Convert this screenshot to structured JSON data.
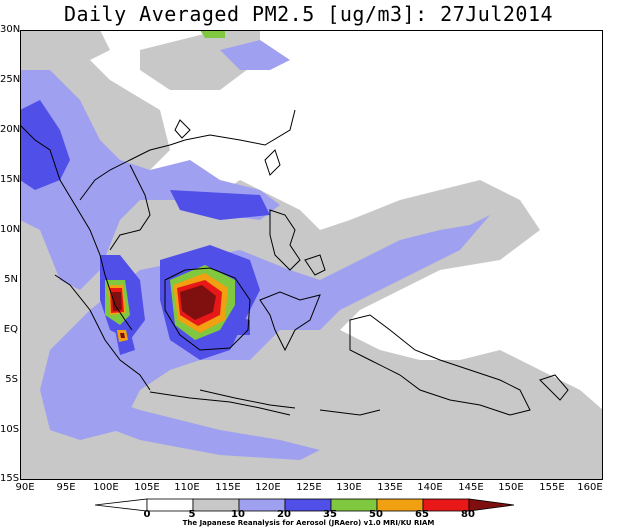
{
  "title": "Daily Averaged PM2.5 [ug/m3]: 27Jul2014",
  "credit": "The Japanese Reanalysis for Aerosol (JRAero) v1.0 MRI/KU RIAM",
  "y_ticks": [
    "30N",
    "25N",
    "20N",
    "15N",
    "10N",
    "5N",
    "EQ",
    "5S",
    "10S",
    "15S"
  ],
  "x_ticks": [
    "90E",
    "95E",
    "100E",
    "105E",
    "110E",
    "115E",
    "120E",
    "125E",
    "130E",
    "135E",
    "140E",
    "145E",
    "150E",
    "155E",
    "160E"
  ],
  "legend": {
    "values": [
      "0",
      "5",
      "10",
      "20",
      "35",
      "50",
      "65",
      "80"
    ],
    "colors": [
      "#ffffff",
      "#c8c8c8",
      "#a0a0f0",
      "#5050e8",
      "#80c840",
      "#f0a010",
      "#e81818",
      "#801010"
    ]
  }
}
